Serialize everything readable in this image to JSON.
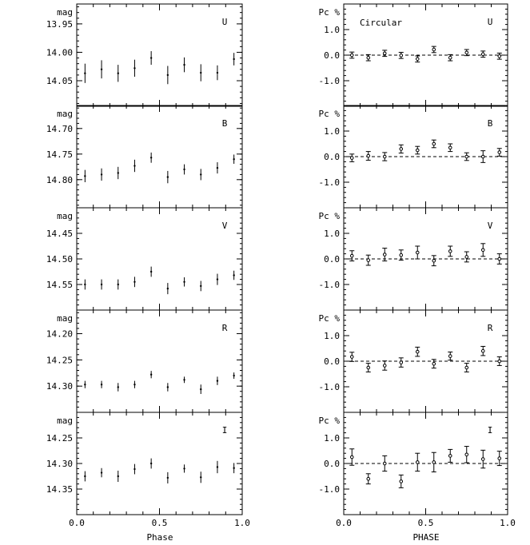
{
  "figure": {
    "x_tick_labels": [
      "0.0",
      "0.5",
      "1.0"
    ],
    "x_axis_labels": {
      "left": "Phase",
      "right": "PHASE"
    },
    "colors": {
      "ink": "#000000",
      "background": "#ffffff"
    }
  },
  "chart_data": [
    {
      "type": "scatter",
      "column": "left",
      "band": "U",
      "ylabel": "mag",
      "y_inverted": true,
      "ylim": [
        14.095,
        13.915
      ],
      "y_ticks": [
        "13.95",
        "14.00",
        "14.05"
      ],
      "y_minor_step": 0.01,
      "xlim": [
        0.0,
        1.0
      ],
      "x": [
        0.05,
        0.15,
        0.25,
        0.35,
        0.45,
        0.55,
        0.65,
        0.75,
        0.85,
        0.95
      ],
      "values": [
        14.037,
        14.03,
        14.037,
        14.028,
        14.01,
        14.04,
        14.022,
        14.036,
        14.036,
        14.012
      ],
      "errors": [
        0.017,
        0.016,
        0.015,
        0.015,
        0.012,
        0.016,
        0.013,
        0.015,
        0.013,
        0.011
      ]
    },
    {
      "type": "scatter",
      "column": "left",
      "band": "B",
      "ylabel": "mag",
      "y_inverted": true,
      "ylim": [
        14.855,
        14.655
      ],
      "y_ticks": [
        "14.70",
        "14.75",
        "14.80"
      ],
      "y_minor_step": 0.01,
      "xlim": [
        0.0,
        1.0
      ],
      "x": [
        0.05,
        0.15,
        0.25,
        0.35,
        0.45,
        0.55,
        0.65,
        0.75,
        0.85,
        0.95
      ],
      "values": [
        14.793,
        14.79,
        14.787,
        14.773,
        14.757,
        14.795,
        14.78,
        14.79,
        14.777,
        14.76
      ],
      "errors": [
        0.012,
        0.012,
        0.012,
        0.012,
        0.01,
        0.012,
        0.01,
        0.011,
        0.011,
        0.009
      ]
    },
    {
      "type": "scatter",
      "column": "left",
      "band": "V",
      "ylabel": "mag",
      "y_inverted": true,
      "ylim": [
        14.6,
        14.4
      ],
      "y_ticks": [
        "14.45",
        "14.50",
        "14.55"
      ],
      "y_minor_step": 0.01,
      "xlim": [
        0.0,
        1.0
      ],
      "x": [
        0.05,
        0.15,
        0.25,
        0.35,
        0.45,
        0.55,
        0.65,
        0.75,
        0.85,
        0.95
      ],
      "values": [
        14.55,
        14.55,
        14.55,
        14.545,
        14.525,
        14.558,
        14.545,
        14.553,
        14.54,
        14.532
      ],
      "errors": [
        0.01,
        0.01,
        0.01,
        0.01,
        0.01,
        0.011,
        0.009,
        0.01,
        0.011,
        0.009
      ]
    },
    {
      "type": "scatter",
      "column": "left",
      "band": "R",
      "ylabel": "mag",
      "y_inverted": true,
      "ylim": [
        14.35,
        14.155
      ],
      "y_ticks": [
        "14.20",
        "14.25",
        "14.30"
      ],
      "y_minor_step": 0.01,
      "xlim": [
        0.0,
        1.0
      ],
      "x": [
        0.05,
        0.15,
        0.25,
        0.35,
        0.45,
        0.55,
        0.65,
        0.75,
        0.85,
        0.95
      ],
      "values": [
        14.297,
        14.297,
        14.302,
        14.297,
        14.278,
        14.302,
        14.288,
        14.306,
        14.29,
        14.28
      ],
      "errors": [
        0.007,
        0.007,
        0.008,
        0.007,
        0.007,
        0.008,
        0.006,
        0.009,
        0.008,
        0.006
      ]
    },
    {
      "type": "scatter",
      "column": "left",
      "band": "I",
      "ylabel": "mag",
      "y_inverted": true,
      "ylim": [
        14.4,
        14.2
      ],
      "y_ticks": [
        "14.25",
        "14.30",
        "14.35"
      ],
      "y_minor_step": 0.01,
      "xlim": [
        0.0,
        1.0
      ],
      "x": [
        0.05,
        0.15,
        0.25,
        0.35,
        0.45,
        0.55,
        0.65,
        0.75,
        0.85,
        0.95
      ],
      "values": [
        14.325,
        14.318,
        14.325,
        14.311,
        14.3,
        14.328,
        14.31,
        14.327,
        14.307,
        14.309
      ],
      "errors": [
        0.01,
        0.009,
        0.011,
        0.01,
        0.01,
        0.011,
        0.008,
        0.011,
        0.012,
        0.01
      ]
    },
    {
      "type": "scatter",
      "column": "right",
      "band": "U",
      "ylabel": "Pc %",
      "annotation": "Circular",
      "ylim": [
        -2.0,
        2.0
      ],
      "y_ticks": [
        "1.0",
        "0.0",
        "-1.0"
      ],
      "y_tick_values": [
        1.0,
        0.0,
        -1.0
      ],
      "y_minor_step": 0.2,
      "reference_line": 0,
      "xlim": [
        0.0,
        1.0
      ],
      "x": [
        0.05,
        0.15,
        0.25,
        0.35,
        0.45,
        0.55,
        0.65,
        0.75,
        0.85,
        0.95
      ],
      "values": [
        0.0,
        -0.1,
        0.07,
        -0.01,
        -0.15,
        0.22,
        -0.1,
        0.1,
        0.04,
        -0.04
      ],
      "errors": [
        0.12,
        0.12,
        0.12,
        0.12,
        0.12,
        0.12,
        0.12,
        0.12,
        0.12,
        0.12
      ]
    },
    {
      "type": "scatter",
      "column": "right",
      "band": "B",
      "ylabel": "Pc %",
      "ylim": [
        -2.0,
        2.0
      ],
      "y_ticks": [
        "1.0",
        "0.0",
        "-1.0"
      ],
      "y_tick_values": [
        1.0,
        0.0,
        -1.0
      ],
      "y_minor_step": 0.2,
      "reference_line": 0,
      "xlim": [
        0.0,
        1.0
      ],
      "x": [
        0.05,
        0.15,
        0.25,
        0.35,
        0.45,
        0.55,
        0.65,
        0.75,
        0.85,
        0.95
      ],
      "values": [
        -0.05,
        0.03,
        0.0,
        0.3,
        0.25,
        0.5,
        0.35,
        0.0,
        0.0,
        0.17
      ],
      "errors": [
        0.15,
        0.17,
        0.16,
        0.16,
        0.15,
        0.15,
        0.15,
        0.15,
        0.23,
        0.15
      ]
    },
    {
      "type": "scatter",
      "column": "right",
      "band": "V",
      "ylabel": "Pc %",
      "ylim": [
        -2.0,
        2.0
      ],
      "y_ticks": [
        "1.0",
        "0.0",
        "-1.0"
      ],
      "y_tick_values": [
        1.0,
        0.0,
        -1.0
      ],
      "y_minor_step": 0.2,
      "reference_line": 0,
      "xlim": [
        0.0,
        1.0
      ],
      "x": [
        0.05,
        0.15,
        0.25,
        0.35,
        0.45,
        0.55,
        0.65,
        0.75,
        0.85,
        0.95
      ],
      "values": [
        0.12,
        -0.05,
        0.17,
        0.15,
        0.25,
        -0.07,
        0.3,
        0.08,
        0.35,
        0.0
      ],
      "errors": [
        0.2,
        0.2,
        0.25,
        0.2,
        0.25,
        0.2,
        0.2,
        0.2,
        0.25,
        0.2
      ]
    },
    {
      "type": "scatter",
      "column": "right",
      "band": "R",
      "ylabel": "Pc %",
      "ylim": [
        -2.0,
        2.0
      ],
      "y_ticks": [
        "1.0",
        "0.0",
        "-1.0"
      ],
      "y_tick_values": [
        1.0,
        0.0,
        -1.0
      ],
      "y_minor_step": 0.2,
      "reference_line": 0,
      "xlim": [
        0.0,
        1.0
      ],
      "x": [
        0.05,
        0.15,
        0.25,
        0.35,
        0.45,
        0.55,
        0.65,
        0.75,
        0.85,
        0.95
      ],
      "values": [
        0.17,
        -0.25,
        -0.17,
        -0.05,
        0.37,
        -0.1,
        0.2,
        -0.25,
        0.4,
        0.0
      ],
      "errors": [
        0.18,
        0.17,
        0.18,
        0.18,
        0.18,
        0.17,
        0.16,
        0.17,
        0.18,
        0.17
      ]
    },
    {
      "type": "scatter",
      "column": "right",
      "band": "I",
      "ylabel": "Pc %",
      "ylim": [
        -2.0,
        2.0
      ],
      "y_ticks": [
        "1.0",
        "0.0",
        "-1.0"
      ],
      "y_tick_values": [
        1.0,
        0.0,
        -1.0
      ],
      "y_minor_step": 0.2,
      "reference_line": 0,
      "xlim": [
        0.0,
        1.0
      ],
      "x": [
        0.05,
        0.15,
        0.25,
        0.35,
        0.45,
        0.55,
        0.65,
        0.75,
        0.85,
        0.95
      ],
      "values": [
        0.25,
        -0.6,
        0.0,
        -0.7,
        0.05,
        0.05,
        0.3,
        0.35,
        0.17,
        0.2
      ],
      "errors": [
        0.32,
        0.2,
        0.3,
        0.25,
        0.35,
        0.38,
        0.25,
        0.32,
        0.35,
        0.28
      ]
    }
  ]
}
